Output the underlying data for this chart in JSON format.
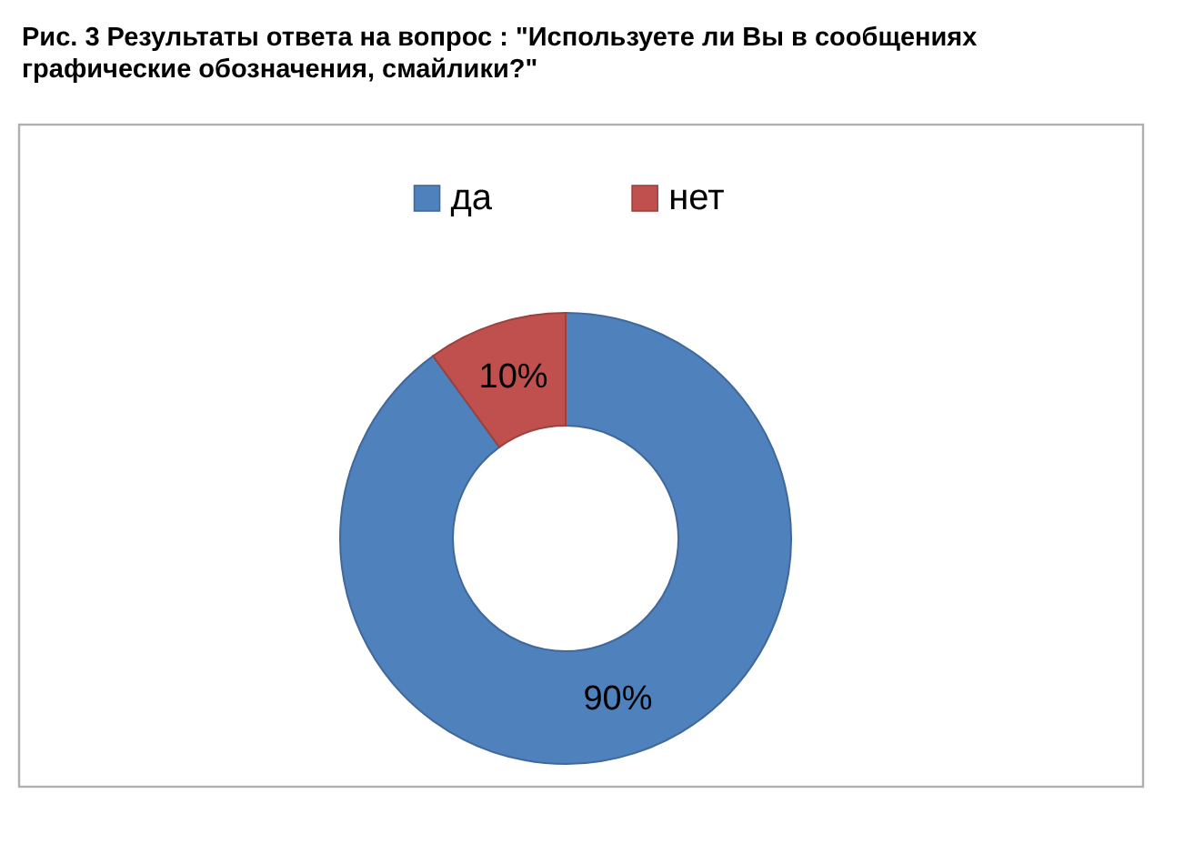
{
  "chart_data": {
    "type": "donut",
    "title": "Рис. 3 Результаты ответа на вопрос : \"Используете ли Вы в сообщениях графические обозначения, смайлики?\"",
    "categories": [
      "да",
      "нет"
    ],
    "values": [
      90,
      10
    ],
    "colors": [
      "#4f81bd",
      "#c0504d"
    ],
    "value_labels": [
      "90%",
      "10%"
    ],
    "legend": "top"
  }
}
